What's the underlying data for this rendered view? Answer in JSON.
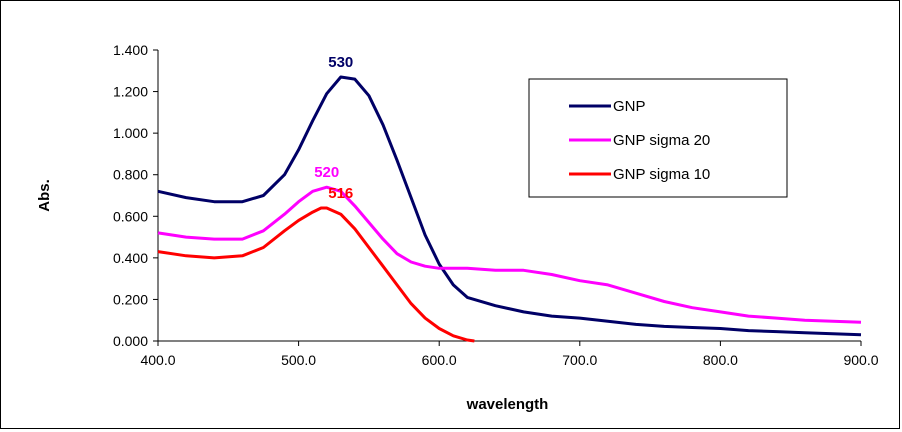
{
  "chart_data": {
    "type": "line",
    "title": "",
    "xlabel": "wavelength",
    "ylabel": "Abs.",
    "xlim": [
      400,
      900
    ],
    "ylim": [
      0,
      1.4
    ],
    "x_ticks": [
      "400.0",
      "500.0",
      "600.0",
      "700.0",
      "800.0",
      "900.0"
    ],
    "y_ticks": [
      "0.000",
      "0.200",
      "0.400",
      "0.600",
      "0.800",
      "1.000",
      "1.200",
      "1.400"
    ],
    "grid": false,
    "legend_position": "top-right",
    "series": [
      {
        "name": "GNP",
        "color": "#000066",
        "points": [
          [
            400,
            0.72
          ],
          [
            420,
            0.69
          ],
          [
            440,
            0.67
          ],
          [
            460,
            0.67
          ],
          [
            475,
            0.7
          ],
          [
            490,
            0.8
          ],
          [
            500,
            0.92
          ],
          [
            510,
            1.06
          ],
          [
            520,
            1.19
          ],
          [
            530,
            1.27
          ],
          [
            540,
            1.26
          ],
          [
            550,
            1.18
          ],
          [
            560,
            1.04
          ],
          [
            570,
            0.87
          ],
          [
            580,
            0.69
          ],
          [
            590,
            0.51
          ],
          [
            600,
            0.37
          ],
          [
            610,
            0.27
          ],
          [
            620,
            0.21
          ],
          [
            640,
            0.17
          ],
          [
            660,
            0.14
          ],
          [
            680,
            0.12
          ],
          [
            700,
            0.11
          ],
          [
            720,
            0.095
          ],
          [
            740,
            0.08
          ],
          [
            760,
            0.07
          ],
          [
            780,
            0.065
          ],
          [
            800,
            0.06
          ],
          [
            820,
            0.05
          ],
          [
            840,
            0.045
          ],
          [
            860,
            0.04
          ],
          [
            880,
            0.035
          ],
          [
            900,
            0.03
          ]
        ]
      },
      {
        "name": "GNP  sigma 20",
        "color": "#FF00FF",
        "points": [
          [
            400,
            0.52
          ],
          [
            420,
            0.5
          ],
          [
            440,
            0.49
          ],
          [
            460,
            0.49
          ],
          [
            475,
            0.53
          ],
          [
            490,
            0.61
          ],
          [
            500,
            0.67
          ],
          [
            510,
            0.72
          ],
          [
            520,
            0.74
          ],
          [
            530,
            0.72
          ],
          [
            540,
            0.65
          ],
          [
            550,
            0.57
          ],
          [
            560,
            0.49
          ],
          [
            570,
            0.42
          ],
          [
            580,
            0.38
          ],
          [
            590,
            0.36
          ],
          [
            600,
            0.35
          ],
          [
            620,
            0.35
          ],
          [
            640,
            0.34
          ],
          [
            660,
            0.34
          ],
          [
            680,
            0.32
          ],
          [
            700,
            0.29
          ],
          [
            720,
            0.27
          ],
          [
            740,
            0.23
          ],
          [
            760,
            0.19
          ],
          [
            780,
            0.16
          ],
          [
            800,
            0.14
          ],
          [
            820,
            0.12
          ],
          [
            840,
            0.11
          ],
          [
            860,
            0.1
          ],
          [
            880,
            0.095
          ],
          [
            900,
            0.09
          ]
        ]
      },
      {
        "name": "GNP  sigma 10",
        "color": "#FF0000",
        "points": [
          [
            400,
            0.43
          ],
          [
            420,
            0.41
          ],
          [
            440,
            0.4
          ],
          [
            460,
            0.41
          ],
          [
            475,
            0.45
          ],
          [
            490,
            0.53
          ],
          [
            500,
            0.58
          ],
          [
            510,
            0.62
          ],
          [
            516,
            0.64
          ],
          [
            520,
            0.64
          ],
          [
            530,
            0.61
          ],
          [
            540,
            0.54
          ],
          [
            550,
            0.45
          ],
          [
            560,
            0.36
          ],
          [
            570,
            0.27
          ],
          [
            580,
            0.18
          ],
          [
            590,
            0.11
          ],
          [
            600,
            0.06
          ],
          [
            610,
            0.025
          ],
          [
            620,
            0.005
          ],
          [
            625,
            0.0
          ]
        ]
      }
    ],
    "annotations": [
      {
        "text": "530",
        "x": 530,
        "y": 1.27,
        "color": "#000066"
      },
      {
        "text": "520",
        "x": 520,
        "y": 0.74,
        "color": "#FF00FF"
      },
      {
        "text": "516",
        "x": 530,
        "y": 0.64,
        "color": "#FF0000"
      }
    ]
  }
}
